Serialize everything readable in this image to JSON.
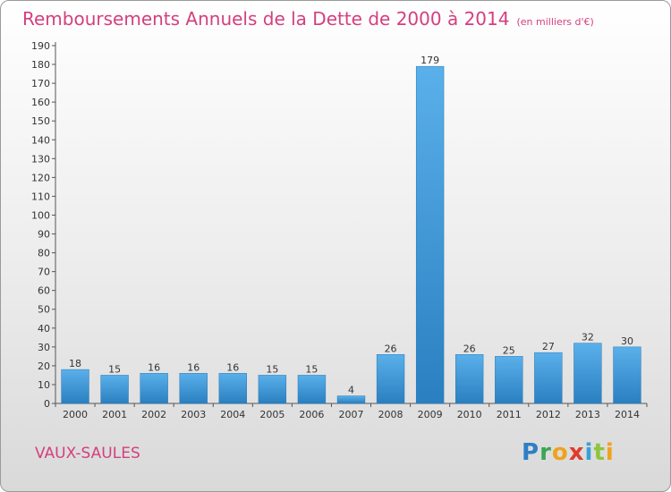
{
  "title": "Remboursements Annuels de la Dette de 2000 à 2014",
  "unit": "(en milliers d'€)",
  "commune": "VAUX-SAULES",
  "logo": {
    "p": "P",
    "r": "r",
    "o": "o",
    "x": "x",
    "i": "i",
    "t": "t",
    "i2": "i"
  },
  "colors": {
    "title": "#d43f7e",
    "bar_top": "#5ab0ea",
    "bar_bottom": "#2a7fc0"
  },
  "chart_data": {
    "type": "bar",
    "categories": [
      "2000",
      "2001",
      "2002",
      "2003",
      "2004",
      "2005",
      "2006",
      "2007",
      "2008",
      "2009",
      "2010",
      "2011",
      "2012",
      "2013",
      "2014"
    ],
    "values": [
      18,
      15,
      16,
      16,
      16,
      15,
      15,
      4,
      26,
      179,
      26,
      25,
      27,
      32,
      30
    ],
    "title": "Remboursements Annuels de la Dette de 2000 à 2014",
    "ylim": [
      0,
      190
    ],
    "yticks": [
      0,
      10,
      20,
      30,
      40,
      50,
      60,
      70,
      80,
      90,
      100,
      110,
      120,
      130,
      140,
      150,
      160,
      170,
      180,
      190
    ],
    "grid": false,
    "legend": "none"
  }
}
